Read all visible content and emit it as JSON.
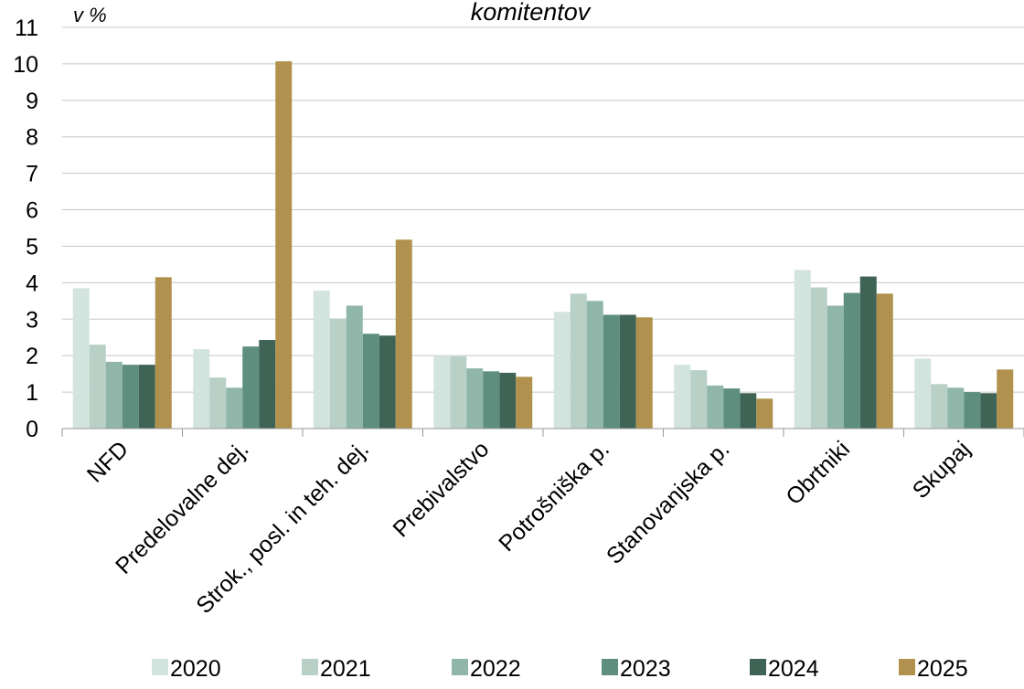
{
  "chart_data": {
    "type": "bar",
    "title": "komitentov",
    "ylabel": "v %",
    "xlabel": "",
    "ylim": [
      0,
      11
    ],
    "yticks": [
      0,
      1,
      2,
      3,
      4,
      5,
      6,
      7,
      8,
      9,
      10,
      11
    ],
    "grid": true,
    "legend_position": "bottom",
    "categories": [
      "NFD",
      "Predelovalne dej.",
      "Strok., posl. in teh. dej.",
      "Prebivalstvo",
      "Potrošniška p.",
      "Stanovanjska p.",
      "Obrtniki",
      "Skupaj"
    ],
    "series": [
      {
        "name": "2020",
        "color": "#d3e3dd",
        "values": [
          3.85,
          2.18,
          3.78,
          2.0,
          3.2,
          1.75,
          4.35,
          1.92
        ]
      },
      {
        "name": "2021",
        "color": "#b8d0c6",
        "values": [
          2.3,
          1.4,
          3.02,
          1.98,
          3.7,
          1.6,
          3.87,
          1.22
        ]
      },
      {
        "name": "2022",
        "color": "#8fb6a8",
        "values": [
          1.83,
          1.12,
          3.37,
          1.65,
          3.5,
          1.18,
          3.37,
          1.12
        ]
      },
      {
        "name": "2023",
        "color": "#5e8f7e",
        "values": [
          1.75,
          2.25,
          2.6,
          1.57,
          3.12,
          1.1,
          3.72,
          1.0
        ]
      },
      {
        "name": "2024",
        "color": "#3f6455",
        "values": [
          1.75,
          2.43,
          2.55,
          1.53,
          3.12,
          0.97,
          4.17,
          0.97
        ]
      },
      {
        "name": "2025",
        "color": "#b0924e",
        "values": [
          4.15,
          10.07,
          5.18,
          1.42,
          3.05,
          0.82,
          3.7,
          1.62
        ]
      }
    ]
  }
}
